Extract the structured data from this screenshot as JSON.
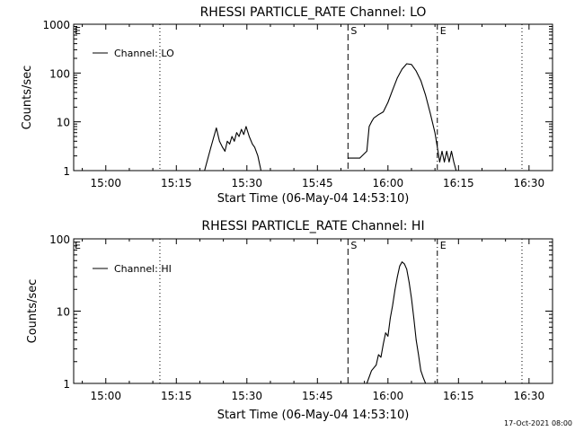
{
  "footer": {
    "timestamp": "17-Oct-2021 08:00"
  },
  "chart_data": [
    {
      "type": "line",
      "title": "RHESSI PARTICLE_RATE Channel: LO",
      "xlabel": "Start Time (06-May-04 14:53:10)",
      "ylabel": "Counts/sec",
      "x_ticks": [
        "15:00",
        "15:15",
        "15:30",
        "15:45",
        "16:00",
        "16:15",
        "16:30"
      ],
      "y_ticks": [
        "1",
        "10",
        "100",
        "1000"
      ],
      "y_scale": "log",
      "xlim": [
        "14:53:10",
        "16:35:00"
      ],
      "ylim": [
        1,
        1000
      ],
      "legend": {
        "label": "Channel: LO",
        "position": "top-left"
      },
      "markers": [
        {
          "time": "15:11:30",
          "style": "dotted",
          "label": ""
        },
        {
          "time": "15:51:30",
          "style": "dashed",
          "label": "S"
        },
        {
          "time": "16:10:30",
          "style": "dashdot",
          "label": "E"
        },
        {
          "time": "16:28:30",
          "style": "dotted",
          "label": ""
        }
      ],
      "edge_labels": {
        "left": "E"
      },
      "series": [
        {
          "name": "Channel: LO",
          "segments": [
            {
              "x": [
                "15:21:00",
                "15:22:20",
                "15:23:30",
                "15:24:10",
                "15:24:50",
                "15:25:20",
                "15:25:50",
                "15:26:20",
                "15:26:50",
                "15:27:20",
                "15:27:50",
                "15:28:20",
                "15:28:50",
                "15:29:20",
                "15:29:50",
                "15:30:30",
                "15:31:10",
                "15:31:40",
                "15:32:20",
                "15:33:00"
              ],
              "y": [
                1.0,
                3.0,
                7.5,
                4.0,
                3.0,
                2.5,
                4.0,
                3.5,
                5.0,
                4.0,
                6.0,
                5.0,
                7.0,
                5.5,
                8.0,
                5.0,
                3.5,
                3.0,
                2.0,
                1.0
              ]
            },
            {
              "x": [
                "15:51:30",
                "15:54:00",
                "15:55:30",
                "15:56:00",
                "15:56:30",
                "15:57:00",
                "15:58:00",
                "15:59:00",
                "16:00:00",
                "16:01:00",
                "16:02:00",
                "16:03:00",
                "16:04:00",
                "16:05:00",
                "16:06:00",
                "16:07:00",
                "16:08:00",
                "16:09:00",
                "16:10:00",
                "16:10:30",
                "16:11:00",
                "16:11:30",
                "16:12:00",
                "16:12:30",
                "16:13:00",
                "16:13:30",
                "16:14:00",
                "16:14:30",
                "16:15:00"
              ],
              "y": [
                1.8,
                1.8,
                2.5,
                8.0,
                10.0,
                12.0,
                14.0,
                16.0,
                25.0,
                45.0,
                80.0,
                120.0,
                155.0,
                150.0,
                110.0,
                70.0,
                35.0,
                15.0,
                6.0,
                3.0,
                1.5,
                2.5,
                1.5,
                2.5,
                1.5,
                2.5,
                1.5,
                1.0,
                1.0
              ]
            }
          ]
        }
      ]
    },
    {
      "type": "line",
      "title": "RHESSI PARTICLE_RATE Channel: HI",
      "xlabel": "Start Time (06-May-04 14:53:10)",
      "ylabel": "Counts/sec",
      "x_ticks": [
        "15:00",
        "15:15",
        "15:30",
        "15:45",
        "16:00",
        "16:15",
        "16:30"
      ],
      "y_ticks": [
        "1",
        "10",
        "100"
      ],
      "y_scale": "log",
      "xlim": [
        "14:53:10",
        "16:35:00"
      ],
      "ylim": [
        1,
        100
      ],
      "legend": {
        "label": "Channel: HI",
        "position": "top-left"
      },
      "markers": [
        {
          "time": "15:11:30",
          "style": "dotted",
          "label": ""
        },
        {
          "time": "15:51:30",
          "style": "dashed",
          "label": "S"
        },
        {
          "time": "16:10:30",
          "style": "dashdot",
          "label": "E"
        },
        {
          "time": "16:28:30",
          "style": "dotted",
          "label": ""
        }
      ],
      "edge_labels": {
        "left": "E"
      },
      "series": [
        {
          "name": "Channel: HI",
          "segments": [
            {
              "x": [
                "15:55:30",
                "15:56:30",
                "15:57:30",
                "15:58:00",
                "15:58:30",
                "15:59:00",
                "15:59:30",
                "16:00:00",
                "16:00:30",
                "16:01:00",
                "16:01:30",
                "16:02:00",
                "16:02:30",
                "16:03:00",
                "16:03:30",
                "16:04:00",
                "16:04:30",
                "16:05:00",
                "16:05:30",
                "16:06:00",
                "16:06:30",
                "16:07:00",
                "16:07:30",
                "16:08:00"
              ],
              "y": [
                1.0,
                1.5,
                1.8,
                2.5,
                2.3,
                3.5,
                5.0,
                4.5,
                8.0,
                12.0,
                20.0,
                30.0,
                42.0,
                48.0,
                45.0,
                38.0,
                25.0,
                15.0,
                8.0,
                4.0,
                2.5,
                1.5,
                1.2,
                1.0
              ]
            }
          ]
        }
      ]
    }
  ]
}
